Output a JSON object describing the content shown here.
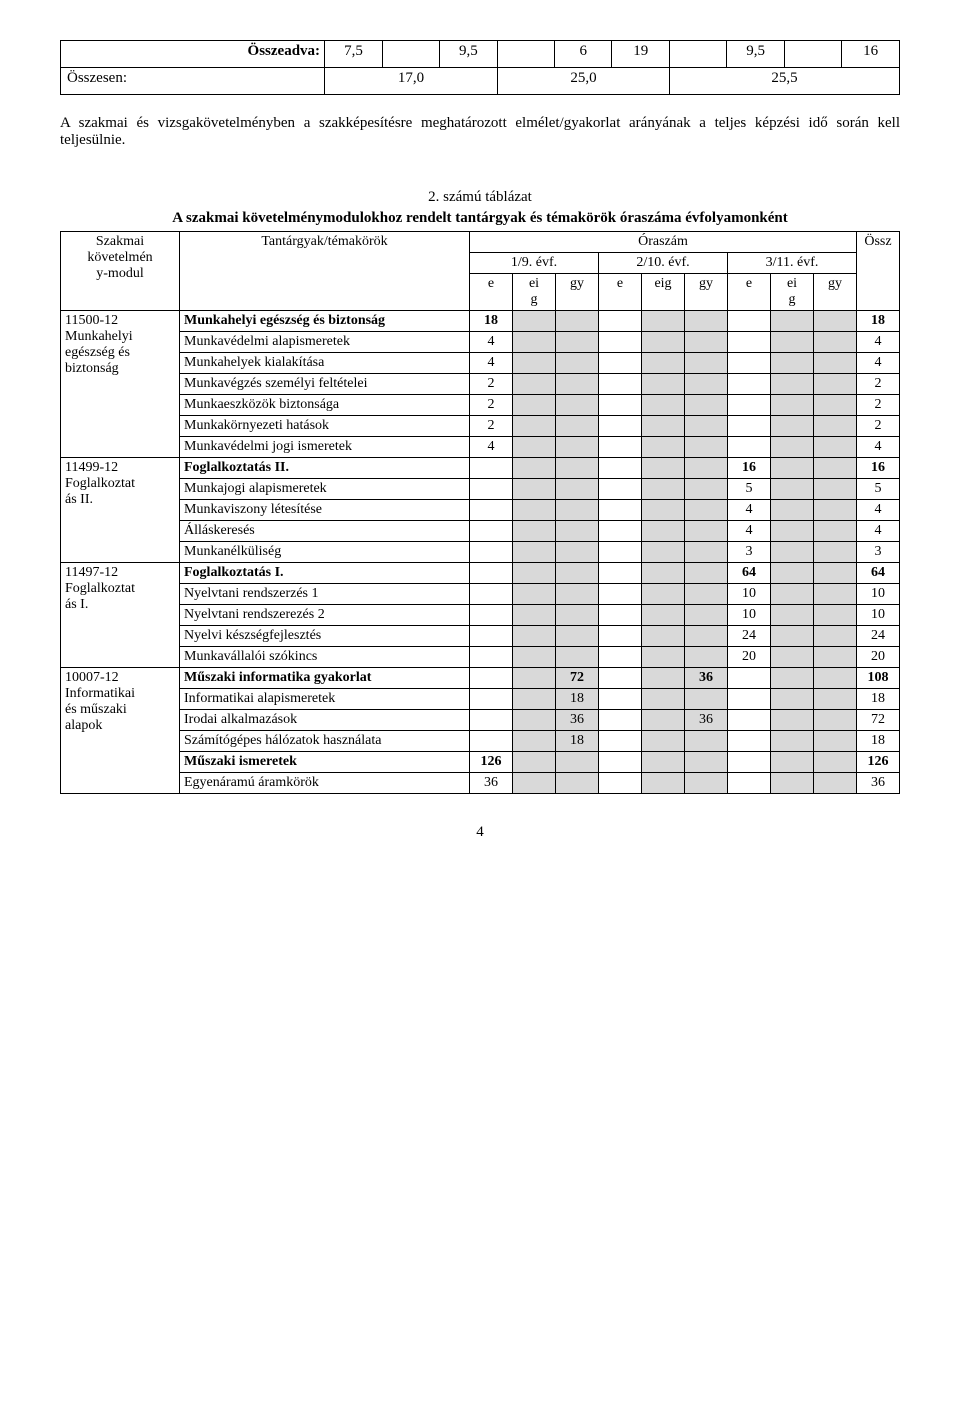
{
  "topTable": {
    "row1": {
      "label": "Összeadva:",
      "cells": [
        "7,5",
        "",
        "9,5",
        "",
        "6",
        "19",
        "",
        "9,5",
        "",
        "16"
      ]
    },
    "row2": {
      "label": "Összesen:",
      "cells": [
        "17,0",
        "25,0",
        "25,5"
      ]
    }
  },
  "paragraph": "A szakmai és vizsgakövetelményben a szakképesítésre meghatározott elmélet/gyakorlat arányának a teljes képzési idő során kell teljesülnie.",
  "caption1": "2. számú táblázat",
  "caption2": "A szakmai követelménymodulokhoz rendelt tantárgyak és témakörök óraszáma évfolyamonként",
  "header": {
    "col1a": "Szakmai",
    "col1b": "követelmén",
    "col1c": "y-modul",
    "col2": "Tantárgyak/témakörök",
    "ora": "Óraszám",
    "y1": "1/9. évf.",
    "y2": "2/10. évf.",
    "y3": "3/11. évf.",
    "ossz": "Össz",
    "e": "e",
    "ei": "ei",
    "g": "g",
    "gy": "gy",
    "eig": "eig"
  },
  "modules": [
    {
      "left": [
        "11500-12",
        "Munkahelyi",
        "egészség és",
        "biztonság"
      ],
      "rows": [
        {
          "t": "Munkahelyi egészség és biztonság",
          "bold": true,
          "v": [
            "18",
            "",
            "",
            "",
            "",
            "",
            "",
            "",
            "",
            "18"
          ]
        },
        {
          "t": "Munkavédelmi alapismeretek",
          "v": [
            "4",
            "",
            "",
            "",
            "",
            "",
            "",
            "",
            "",
            "4"
          ]
        },
        {
          "t": "Munkahelyek kialakítása",
          "v": [
            "4",
            "",
            "",
            "",
            "",
            "",
            "",
            "",
            "",
            "4"
          ]
        },
        {
          "t": "Munkavégzés személyi feltételei",
          "v": [
            "2",
            "",
            "",
            "",
            "",
            "",
            "",
            "",
            "",
            "2"
          ]
        },
        {
          "t": "Munkaeszközök biztonsága",
          "v": [
            "2",
            "",
            "",
            "",
            "",
            "",
            "",
            "",
            "",
            "2"
          ]
        },
        {
          "t": "Munkakörnyezeti hatások",
          "v": [
            "2",
            "",
            "",
            "",
            "",
            "",
            "",
            "",
            "",
            "2"
          ]
        },
        {
          "t": "Munkavédelmi jogi ismeretek",
          "v": [
            "4",
            "",
            "",
            "",
            "",
            "",
            "",
            "",
            "",
            "4"
          ]
        }
      ]
    },
    {
      "left": [
        "11499-12",
        "Foglalkoztat",
        "ás II."
      ],
      "rows": [
        {
          "t": "Foglalkoztatás II.",
          "bold": true,
          "v": [
            "",
            "",
            "",
            "",
            "",
            "",
            "16",
            "",
            "",
            "16"
          ]
        },
        {
          "t": "Munkajogi alapismeretek",
          "v": [
            "",
            "",
            "",
            "",
            "",
            "",
            "5",
            "",
            "",
            "5"
          ]
        },
        {
          "t": "Munkaviszony létesítése",
          "v": [
            "",
            "",
            "",
            "",
            "",
            "",
            "4",
            "",
            "",
            "4"
          ]
        },
        {
          "t": "Álláskeresés",
          "v": [
            "",
            "",
            "",
            "",
            "",
            "",
            "4",
            "",
            "",
            "4"
          ]
        },
        {
          "t": "Munkanélküliség",
          "v": [
            "",
            "",
            "",
            "",
            "",
            "",
            "3",
            "",
            "",
            "3"
          ]
        }
      ]
    },
    {
      "left": [
        "11497-12",
        "Foglalkoztat",
        "ás I."
      ],
      "rows": [
        {
          "t": "Foglalkoztatás I.",
          "bold": true,
          "v": [
            "",
            "",
            "",
            "",
            "",
            "",
            "64",
            "",
            "",
            "64"
          ]
        },
        {
          "t": "Nyelvtani rendszerzés 1",
          "v": [
            "",
            "",
            "",
            "",
            "",
            "",
            "10",
            "",
            "",
            "10"
          ]
        },
        {
          "t": "Nyelvtani rendszerezés 2",
          "v": [
            "",
            "",
            "",
            "",
            "",
            "",
            "10",
            "",
            "",
            "10"
          ]
        },
        {
          "t": "Nyelvi készségfejlesztés",
          "v": [
            "",
            "",
            "",
            "",
            "",
            "",
            "24",
            "",
            "",
            "24"
          ]
        },
        {
          "t": "Munkavállalói szókincs",
          "v": [
            "",
            "",
            "",
            "",
            "",
            "",
            "20",
            "",
            "",
            "20"
          ]
        }
      ]
    },
    {
      "left": [
        "",
        "10007-12",
        "Informatikai",
        "és műszaki",
        "alapok"
      ],
      "rows": [
        {
          "t": "Műszaki informatika gyakorlat",
          "bold": true,
          "v": [
            "",
            "",
            "72",
            "",
            "",
            "36",
            "",
            "",
            "",
            "108"
          ]
        },
        {
          "t": "Informatikai alapismeretek",
          "v": [
            "",
            "",
            "18",
            "",
            "",
            "",
            "",
            "",
            "",
            "18"
          ]
        },
        {
          "t": "Irodai alkalmazások",
          "v": [
            "",
            "",
            "36",
            "",
            "",
            "36",
            "",
            "",
            "",
            "72"
          ]
        },
        {
          "t": "Számítógépes hálózatok használata",
          "v": [
            "",
            "",
            "18",
            "",
            "",
            "",
            "",
            "",
            "",
            "18"
          ]
        },
        {
          "t": "Műszaki ismeretek",
          "bold": true,
          "v": [
            "126",
            "",
            "",
            "",
            "",
            "",
            "",
            "",
            "",
            "126"
          ]
        },
        {
          "t": "Egyenáramú áramkörök",
          "v": [
            "36",
            "",
            "",
            "",
            "",
            "",
            "",
            "",
            "",
            "36"
          ]
        }
      ]
    }
  ],
  "pageNumber": "4"
}
